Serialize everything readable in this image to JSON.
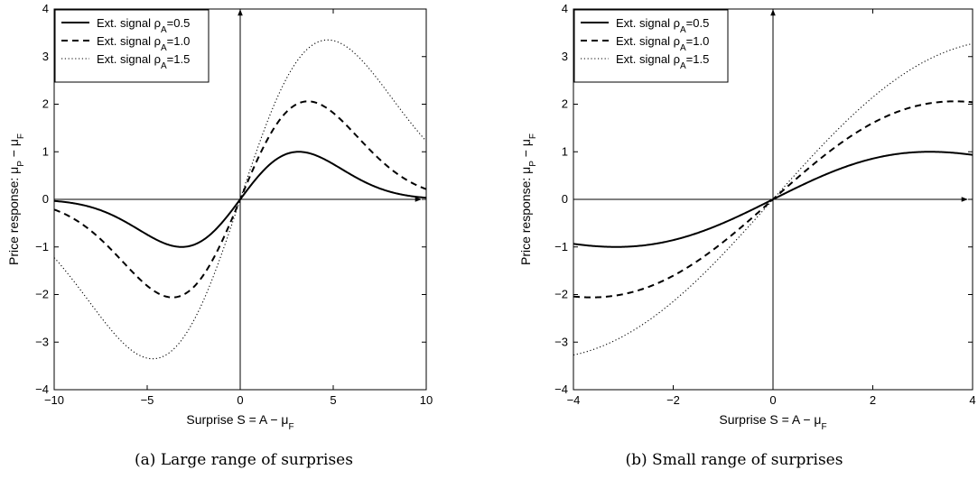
{
  "chart_data": [
    {
      "type": "line",
      "caption": "(a) Large range of surprises",
      "xlim": [
        -10,
        10
      ],
      "ylim": [
        -4,
        4
      ],
      "xticks": [
        -10,
        -5,
        0,
        5,
        10
      ],
      "yticks": [
        -4,
        -3,
        -2,
        -1,
        0,
        1,
        2,
        3,
        4
      ],
      "xtick_labels": [
        "−10",
        "−5",
        "0",
        "5",
        "10"
      ],
      "ytick_labels": [
        "−4",
        "−3",
        "−2",
        "−1",
        "0",
        "1",
        "2",
        "3",
        "4"
      ],
      "xlabel": {
        "main": "Surprise S = A − μ",
        "sub": "F"
      },
      "ylabel": {
        "a": "Price response: μ",
        "a_sub": "P",
        "b": " − μ",
        "b_sub": "F"
      },
      "legend_position": "top-left",
      "grid": false,
      "series": [
        {
          "legend_main": "Ext. signal ρ",
          "legend_sub": "A",
          "legend_value": "=0.5",
          "name": "Ext. signal ρA=0.5",
          "rho": 0.5,
          "amp": 1.0,
          "style": "solid"
        },
        {
          "legend_main": "Ext. signal ρ",
          "legend_sub": "A",
          "legend_value": "=1.0",
          "name": "Ext. signal ρA=1.0",
          "rho": 1.0,
          "amp": 2.06,
          "style": "dashed"
        },
        {
          "legend_main": "Ext. signal ρ",
          "legend_sub": "A",
          "legend_value": "=1.5",
          "name": "Ext. signal ρA=1.5",
          "rho": 1.5,
          "amp": 3.35,
          "style": "dotted"
        }
      ]
    },
    {
      "type": "line",
      "caption": "(b) Small range of surprises",
      "xlim": [
        -4,
        4
      ],
      "ylim": [
        -4,
        4
      ],
      "xticks": [
        -4,
        -2,
        0,
        2,
        4
      ],
      "yticks": [
        -4,
        -3,
        -2,
        -1,
        0,
        1,
        2,
        3,
        4
      ],
      "xtick_labels": [
        "−4",
        "−2",
        "0",
        "2",
        "4"
      ],
      "ytick_labels": [
        "−4",
        "−3",
        "−2",
        "−1",
        "0",
        "1",
        "2",
        "3",
        "4"
      ],
      "xlabel": {
        "main": "Surprise S = A − μ",
        "sub": "F"
      },
      "ylabel": {
        "a": "Price response: μ",
        "a_sub": "P",
        "b": " − μ",
        "b_sub": "F"
      },
      "legend_position": "top-left",
      "grid": false,
      "series": [
        {
          "legend_main": "Ext. signal ρ",
          "legend_sub": "A",
          "legend_value": "=0.5",
          "name": "Ext. signal ρA=0.5",
          "rho": 0.5,
          "amp": 1.0,
          "style": "solid"
        },
        {
          "legend_main": "Ext. signal ρ",
          "legend_sub": "A",
          "legend_value": "=1.0",
          "name": "Ext. signal ρA=1.0",
          "rho": 1.0,
          "amp": 2.06,
          "style": "dashed"
        },
        {
          "legend_main": "Ext. signal ρ",
          "legend_sub": "A",
          "legend_value": "=1.5",
          "name": "Ext. signal ρA=1.5",
          "rho": 1.5,
          "amp": 3.35,
          "style": "dotted"
        }
      ]
    }
  ]
}
